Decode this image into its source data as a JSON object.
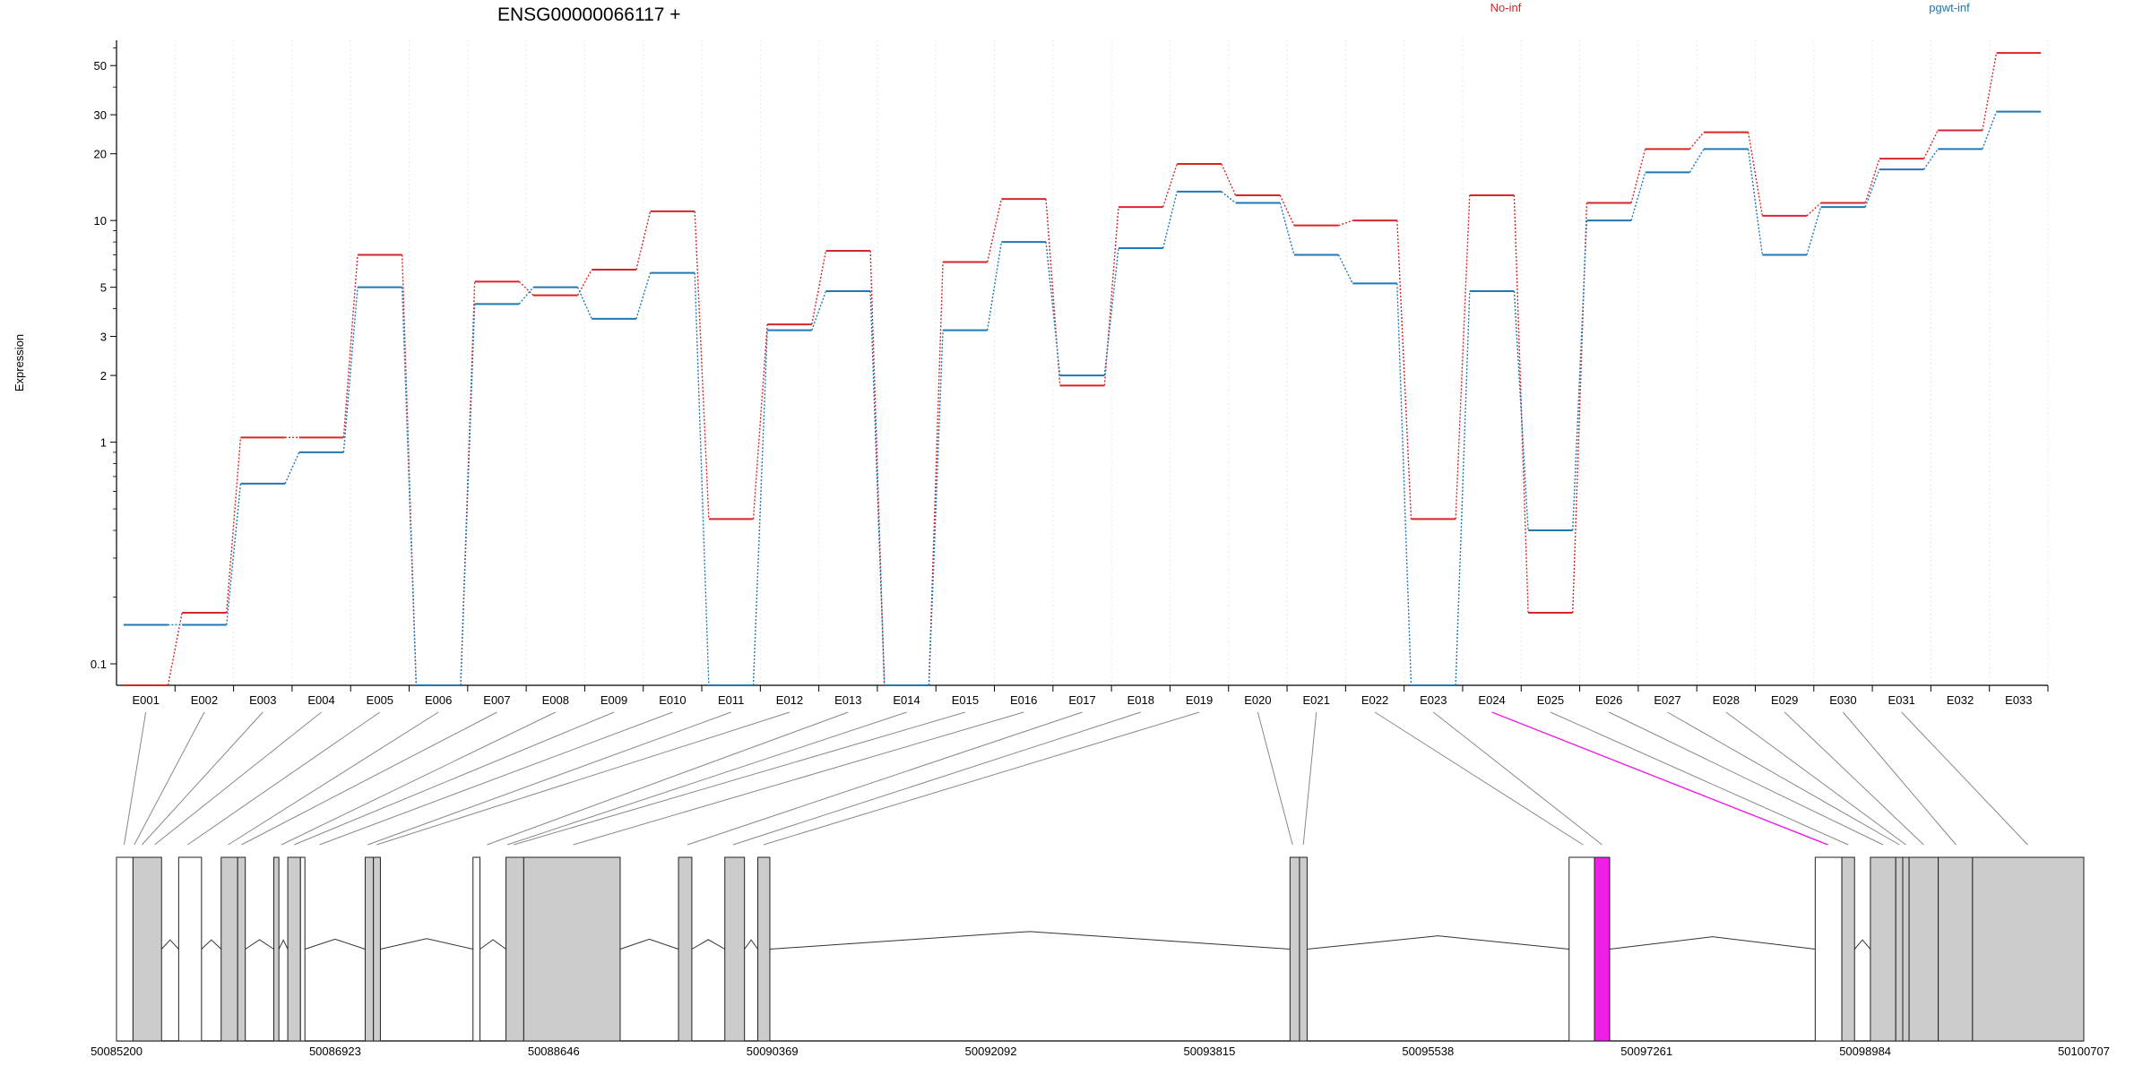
{
  "title": "ENSG00000066117 +",
  "chart_data": {
    "type": "line",
    "title": "ENSG00000066117 +",
    "ylabel": "Expression",
    "yscale": "log",
    "y_ticks": [
      0.1,
      1,
      2,
      3,
      5,
      10,
      20,
      30,
      50
    ],
    "y_tick_labels": [
      "0.1",
      "1",
      "2",
      "3",
      "5",
      "10",
      "20",
      "30",
      "50"
    ],
    "ylim": [
      0.08,
      65
    ],
    "grid_x": true,
    "legend": "top, horizontal",
    "categories": [
      "E001",
      "E002",
      "E003",
      "E004",
      "E005",
      "E006",
      "E007",
      "E008",
      "E009",
      "E010",
      "E011",
      "E012",
      "E013",
      "E014",
      "E015",
      "E016",
      "E017",
      "E018",
      "E019",
      "E020",
      "E021",
      "E022",
      "E023",
      "E024",
      "E025",
      "E026",
      "E027",
      "E028",
      "E029",
      "E030",
      "E031",
      "E032",
      "E033"
    ],
    "series": [
      {
        "name": "No-inf",
        "color": "#d62728",
        "values": [
          0.08,
          0.17,
          1.05,
          1.05,
          7.0,
          0.08,
          5.3,
          4.6,
          6.0,
          11.0,
          0.45,
          3.4,
          7.3,
          0.08,
          6.5,
          12.5,
          1.8,
          11.5,
          18.0,
          13.0,
          9.5,
          10.0,
          0.45,
          13.0,
          0.17,
          12.0,
          21.0,
          25.0,
          10.5,
          12.0,
          19.0,
          25.5,
          57.0
        ]
      },
      {
        "name": "pgwt-inf",
        "color": "#1f77b4",
        "values": [
          0.15,
          0.15,
          0.65,
          0.9,
          5.0,
          0.08,
          4.2,
          5.0,
          3.6,
          5.8,
          0.08,
          3.2,
          4.8,
          0.08,
          3.2,
          8.0,
          2.0,
          7.5,
          13.5,
          12.0,
          7.0,
          5.2,
          0.08,
          4.8,
          0.4,
          10.0,
          16.5,
          21.0,
          7.0,
          11.5,
          17.0,
          21.0,
          31.0
        ]
      }
    ],
    "highlight_exon": "E024",
    "highlight_color": "#ee1fe6",
    "gene_model": {
      "coordinate_ticks": [
        "50085200",
        "50086923",
        "50088646",
        "50090369",
        "50092092",
        "50093815",
        "50095538",
        "50097261",
        "50098984",
        "50100707"
      ],
      "start": 50085200,
      "end": 50100707,
      "exons": [
        {
          "start": 50085200,
          "end": 50085330,
          "fill": "white"
        },
        {
          "start": 50085330,
          "end": 50085555,
          "fill": "gray"
        },
        {
          "start": 50085690,
          "end": 50085870,
          "fill": "white"
        },
        {
          "start": 50086025,
          "end": 50086155,
          "fill": "gray"
        },
        {
          "start": 50086155,
          "end": 50086215,
          "fill": "gray"
        },
        {
          "start": 50086440,
          "end": 50086480,
          "fill": "gray"
        },
        {
          "start": 50086550,
          "end": 50086650,
          "fill": "gray"
        },
        {
          "start": 50086650,
          "end": 50086685,
          "fill": "white"
        },
        {
          "start": 50087160,
          "end": 50087225,
          "fill": "gray"
        },
        {
          "start": 50087225,
          "end": 50087280,
          "fill": "gray"
        },
        {
          "start": 50088010,
          "end": 50088065,
          "fill": "white"
        },
        {
          "start": 50088270,
          "end": 50088410,
          "fill": "gray"
        },
        {
          "start": 50088410,
          "end": 50089170,
          "fill": "gray"
        },
        {
          "start": 50089630,
          "end": 50089735,
          "fill": "gray"
        },
        {
          "start": 50089995,
          "end": 50090150,
          "fill": "gray"
        },
        {
          "start": 50090255,
          "end": 50090350,
          "fill": "gray"
        },
        {
          "start": 50094450,
          "end": 50094525,
          "fill": "gray"
        },
        {
          "start": 50094525,
          "end": 50094585,
          "fill": "gray"
        },
        {
          "start": 50096650,
          "end": 50096850,
          "fill": "white"
        },
        {
          "start": 50096850,
          "end": 50096970,
          "fill": "highlight"
        },
        {
          "start": 50098590,
          "end": 50098800,
          "fill": "white"
        },
        {
          "start": 50098800,
          "end": 50098900,
          "fill": "gray"
        },
        {
          "start": 50099025,
          "end": 50099225,
          "fill": "gray"
        },
        {
          "start": 50099225,
          "end": 50099280,
          "fill": "gray"
        },
        {
          "start": 50099280,
          "end": 50099330,
          "fill": "gray"
        },
        {
          "start": 50099330,
          "end": 50099560,
          "fill": "gray"
        },
        {
          "start": 50099560,
          "end": 50099830,
          "fill": "gray"
        },
        {
          "start": 50099830,
          "end": 50100707,
          "fill": "gray"
        }
      ],
      "exon_link_targets": [
        50085260,
        50085340,
        50085400,
        50085500,
        50085760,
        50086080,
        50086185,
        50086500,
        50086600,
        50086800,
        50087180,
        50087250,
        50088120,
        50088280,
        50088330,
        50088800,
        50089700,
        50090060,
        50090300,
        50094470,
        50094555,
        50096760,
        50096910,
        50098690,
        50098850,
        50099125,
        50099255,
        50099305,
        50099445,
        50099700,
        50100265
      ]
    }
  }
}
